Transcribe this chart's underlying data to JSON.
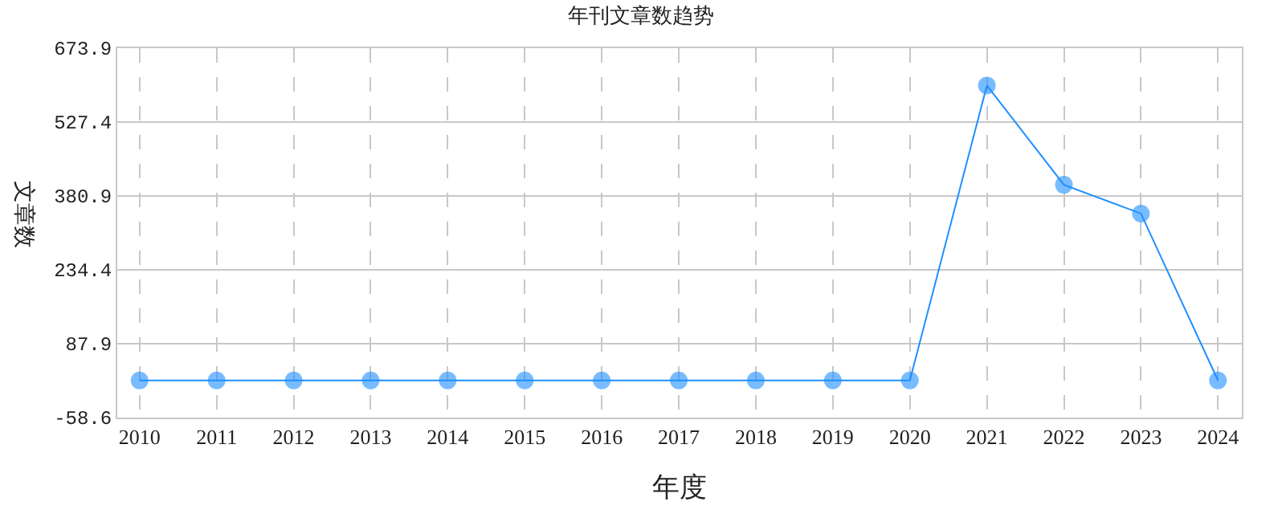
{
  "chart_data": {
    "type": "line",
    "title": "年刊文章数趋势",
    "xlabel": "年度",
    "ylabel": "文章数",
    "categories": [
      "2010",
      "2011",
      "2012",
      "2013",
      "2014",
      "2015",
      "2016",
      "2017",
      "2018",
      "2019",
      "2020",
      "2021",
      "2022",
      "2023",
      "2024"
    ],
    "series": [
      {
        "color": "#1e90ff",
        "values": [
          15,
          15,
          15,
          15,
          15,
          15,
          15,
          15,
          15,
          15,
          15,
          600,
          403,
          346,
          15
        ]
      }
    ],
    "ylim": [
      -58.6,
      673.9
    ],
    "yticks": [
      -58.6,
      87.9,
      234.4,
      380.9,
      527.4,
      673.9
    ],
    "grid": true,
    "marker": "circle",
    "line_style": "solid"
  }
}
